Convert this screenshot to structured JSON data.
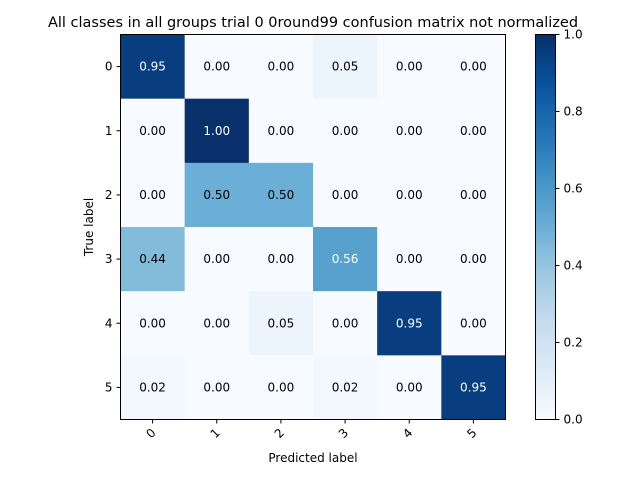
{
  "chart_data": {
    "type": "heatmap",
    "title": "All classes in all groups trial 0 0round99 confusion matrix not normalized",
    "xlabel": "Predicted label",
    "ylabel": "True label",
    "x_categories": [
      "0",
      "1",
      "2",
      "3",
      "4",
      "5"
    ],
    "y_categories": [
      "0",
      "1",
      "2",
      "3",
      "4",
      "5"
    ],
    "values": [
      [
        0.95,
        0.0,
        0.0,
        0.05,
        0.0,
        0.0
      ],
      [
        0.0,
        1.0,
        0.0,
        0.0,
        0.0,
        0.0
      ],
      [
        0.0,
        0.5,
        0.5,
        0.0,
        0.0,
        0.0
      ],
      [
        0.44,
        0.0,
        0.0,
        0.56,
        0.0,
        0.0
      ],
      [
        0.0,
        0.0,
        0.05,
        0.0,
        0.95,
        0.0
      ],
      [
        0.02,
        0.0,
        0.0,
        0.02,
        0.0,
        0.95
      ]
    ],
    "value_format": "0.00",
    "colormap": "Blues",
    "colorbar": {
      "range": [
        0.0,
        1.0
      ],
      "ticks": [
        0.0,
        0.2,
        0.4,
        0.6,
        0.8,
        1.0
      ],
      "tick_labels": [
        "0.0",
        "0.2",
        "0.4",
        "0.6",
        "0.8",
        "1.0"
      ]
    },
    "x_tick_rotation": "45",
    "grid": false
  }
}
